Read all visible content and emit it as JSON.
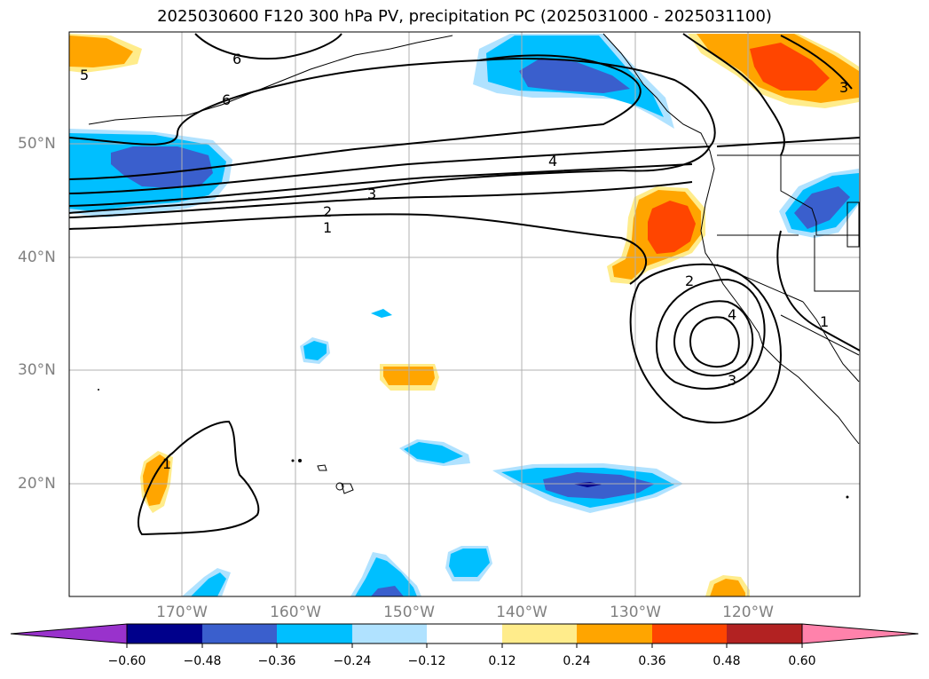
{
  "title": "2025030600 F120 300 hPa PV, precipitation PC (2025031000 - 2025031100)",
  "map": {
    "lat_labels": [
      "50°N",
      "40°N",
      "30°N",
      "20°N"
    ],
    "lon_labels": [
      "170°W",
      "160°W",
      "150°W",
      "140°W",
      "130°W",
      "120°W"
    ],
    "pv_contour_labels": [
      "6",
      "6",
      "5",
      "4",
      "3",
      "2",
      "1",
      "2",
      "4",
      "3",
      "1",
      "1",
      "3"
    ]
  },
  "colorbar": {
    "tick_labels": [
      "−0.60",
      "−0.48",
      "−0.36",
      "−0.24",
      "−0.12",
      "0.12",
      "0.24",
      "0.36",
      "0.48",
      "0.60"
    ],
    "colors": [
      "#9932cc",
      "#00008b",
      "#3a5fcd",
      "#00bfff",
      "#b0e2ff",
      "#ffffff",
      "#ffec8b",
      "#ffa500",
      "#ff4500",
      "#b22222",
      "#ff82ab"
    ]
  }
}
